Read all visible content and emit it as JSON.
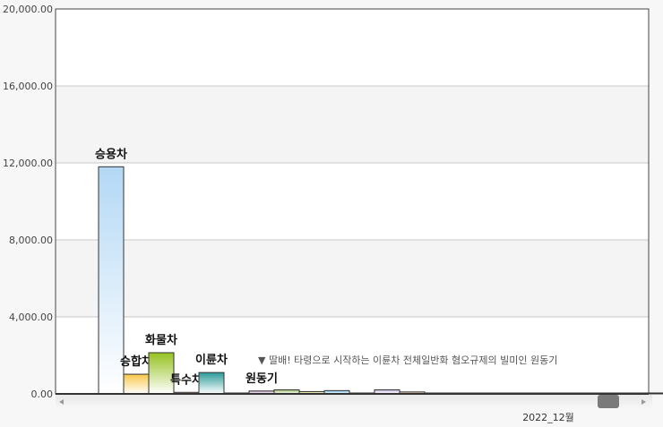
{
  "chart_data": {
    "type": "bar",
    "ylim": [
      0,
      20000
    ],
    "yticks": [
      "0.00",
      "4,000.00",
      "8,000.00",
      "12,000.00",
      "16,000.00",
      "20,000.00"
    ],
    "grid": true,
    "categories": [
      "승용차",
      "승합차",
      "화물차",
      "특수차",
      "이륜차",
      "",
      "원동기",
      "",
      "",
      "",
      "",
      "",
      "",
      "",
      "",
      "",
      "",
      "",
      "",
      "",
      "",
      "",
      "",
      ""
    ],
    "values": [
      11800,
      1020,
      2140,
      80,
      1110,
      40,
      150,
      210,
      120,
      170,
      40,
      210,
      100,
      20,
      20,
      10,
      10,
      10,
      10,
      10,
      10,
      10,
      10,
      10
    ],
    "colors": [
      "#b3d8f5",
      "#f7c84a",
      "#96c11f",
      "#f0b8a0",
      "#2a9a98",
      "#444444",
      "#c9a0d0",
      "#9ebd6a",
      "#d8d878",
      "#7ec4ec",
      "#444444",
      "#c8b8e0",
      "#f0a878",
      "#cccccc",
      "#dddd99",
      "#cccccc",
      "#cccccc",
      "#cccccc",
      "#cccccc",
      "#cccccc",
      "#cccccc",
      "#cccccc",
      "#cccccc",
      "#cccccc"
    ],
    "annotation": "▼ 딸배! 타령으로 시작하는 이륜차 전체일반화 혐오규제의 빌미인 원동기",
    "xlabel": "2022_12월"
  }
}
